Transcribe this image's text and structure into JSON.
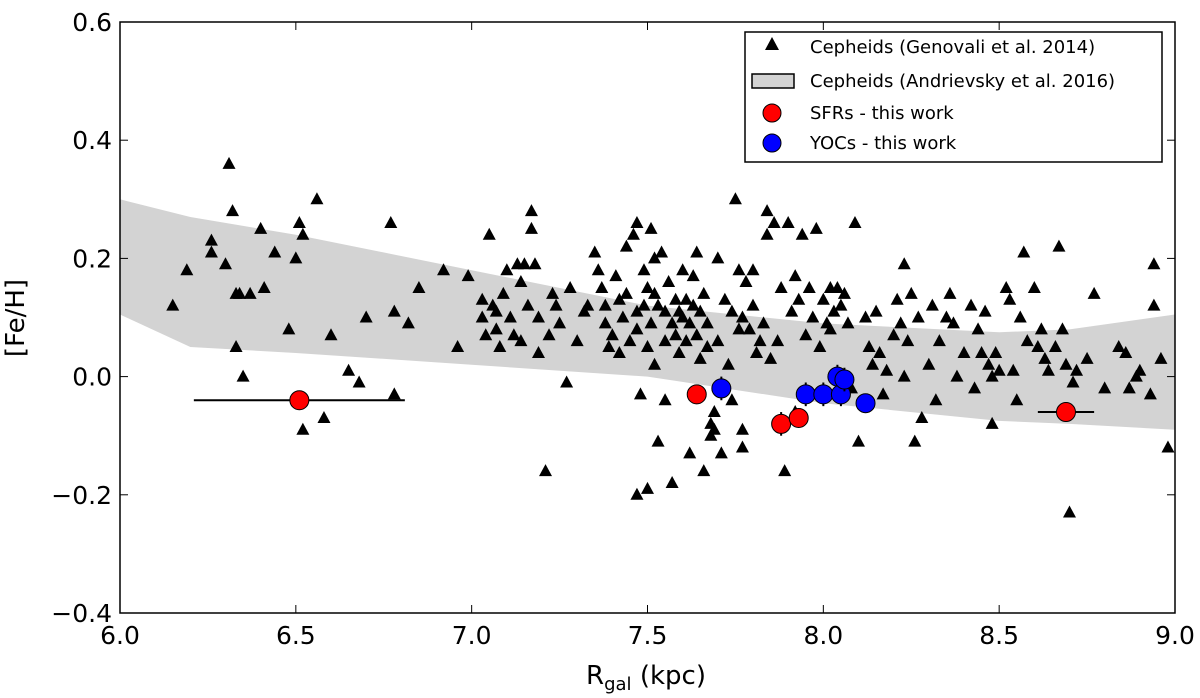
{
  "chart_data": {
    "type": "scatter",
    "title": "",
    "xlabel_main": "R",
    "xlabel_sub": "gal",
    "xlabel_unit": " (kpc)",
    "ylabel": "[Fe/H]",
    "xlim": [
      6.0,
      9.0
    ],
    "ylim": [
      -0.4,
      0.6
    ],
    "xticks": [
      6.0,
      6.5,
      7.0,
      7.5,
      8.0,
      8.5,
      9.0
    ],
    "xtick_labels": [
      "6.0",
      "6.5",
      "7.0",
      "7.5",
      "8.0",
      "8.5",
      "9.0"
    ],
    "yticks": [
      -0.4,
      -0.2,
      0.0,
      0.2,
      0.4,
      0.6
    ],
    "ytick_labels": [
      "−0.4",
      "−0.2",
      "0.0",
      "0.2",
      "0.4",
      "0.6"
    ],
    "legend": [
      {
        "label": "Cepheids (Genovali et al. 2014)",
        "marker": "triangle",
        "color": "#000000"
      },
      {
        "label": "Cepheids (Andrievsky et al. 2016)",
        "marker": "band",
        "color": "#d3d3d3"
      },
      {
        "label": "SFRs - this work",
        "marker": "circle",
        "color": "#ff0000"
      },
      {
        "label": "YOCs - this work",
        "marker": "circle",
        "color": "#0000ff"
      }
    ],
    "band": {
      "x": [
        6.0,
        6.2,
        6.5,
        7.0,
        7.5,
        8.0,
        8.5,
        8.7,
        9.0
      ],
      "upper": [
        0.3,
        0.27,
        0.24,
        0.18,
        0.12,
        0.09,
        0.075,
        0.08,
        0.105
      ],
      "lower": [
        0.105,
        0.05,
        0.04,
        0.02,
        0.0,
        -0.045,
        -0.075,
        -0.08,
        -0.09
      ]
    },
    "cepheids": [
      [
        6.15,
        0.12
      ],
      [
        6.19,
        0.18
      ],
      [
        6.26,
        0.23
      ],
      [
        6.26,
        0.21
      ],
      [
        6.3,
        0.19
      ],
      [
        6.31,
        0.36
      ],
      [
        6.32,
        0.28
      ],
      [
        6.33,
        0.14
      ],
      [
        6.33,
        0.05
      ],
      [
        6.34,
        0.14
      ],
      [
        6.35,
        0.0
      ],
      [
        6.37,
        0.14
      ],
      [
        6.4,
        0.25
      ],
      [
        6.41,
        0.15
      ],
      [
        6.44,
        0.21
      ],
      [
        6.48,
        0.08
      ],
      [
        6.5,
        0.2
      ],
      [
        6.51,
        0.26
      ],
      [
        6.52,
        0.24
      ],
      [
        6.52,
        -0.09
      ],
      [
        6.56,
        0.3
      ],
      [
        6.58,
        -0.07
      ],
      [
        6.6,
        0.07
      ],
      [
        6.65,
        0.01
      ],
      [
        6.68,
        -0.01
      ],
      [
        6.7,
        0.1
      ],
      [
        6.77,
        0.26
      ],
      [
        6.78,
        -0.03
      ],
      [
        6.78,
        0.11
      ],
      [
        6.82,
        0.09
      ],
      [
        6.85,
        0.15
      ],
      [
        6.92,
        0.18
      ],
      [
        6.96,
        0.05
      ],
      [
        6.99,
        0.17
      ],
      [
        7.03,
        0.13
      ],
      [
        7.03,
        0.1
      ],
      [
        7.04,
        0.07
      ],
      [
        7.05,
        0.24
      ],
      [
        7.06,
        0.12
      ],
      [
        7.07,
        0.11
      ],
      [
        7.07,
        0.08
      ],
      [
        7.08,
        0.05
      ],
      [
        7.09,
        0.14
      ],
      [
        7.1,
        0.18
      ],
      [
        7.11,
        0.1
      ],
      [
        7.12,
        0.07
      ],
      [
        7.13,
        0.19
      ],
      [
        7.14,
        0.16
      ],
      [
        7.14,
        0.06
      ],
      [
        7.15,
        0.19
      ],
      [
        7.16,
        0.12
      ],
      [
        7.17,
        0.25
      ],
      [
        7.17,
        0.28
      ],
      [
        7.18,
        0.19
      ],
      [
        7.19,
        0.1
      ],
      [
        7.19,
        0.04
      ],
      [
        7.21,
        -0.16
      ],
      [
        7.22,
        0.07
      ],
      [
        7.23,
        0.14
      ],
      [
        7.24,
        0.12
      ],
      [
        7.25,
        0.09
      ],
      [
        7.27,
        -0.01
      ],
      [
        7.28,
        0.15
      ],
      [
        7.3,
        0.06
      ],
      [
        7.32,
        0.11
      ],
      [
        7.33,
        0.12
      ],
      [
        7.35,
        0.21
      ],
      [
        7.36,
        0.18
      ],
      [
        7.37,
        0.15
      ],
      [
        7.38,
        0.12
      ],
      [
        7.38,
        0.09
      ],
      [
        7.39,
        0.05
      ],
      [
        7.4,
        0.07
      ],
      [
        7.41,
        0.17
      ],
      [
        7.42,
        0.13
      ],
      [
        7.42,
        0.04
      ],
      [
        7.43,
        0.1
      ],
      [
        7.44,
        0.22
      ],
      [
        7.44,
        0.14
      ],
      [
        7.45,
        0.06
      ],
      [
        7.46,
        0.24
      ],
      [
        7.47,
        0.26
      ],
      [
        7.47,
        0.11
      ],
      [
        7.47,
        0.08
      ],
      [
        7.47,
        -0.2
      ],
      [
        7.48,
        -0.03
      ],
      [
        7.49,
        0.18
      ],
      [
        7.49,
        0.12
      ],
      [
        7.5,
        0.15
      ],
      [
        7.5,
        0.05
      ],
      [
        7.5,
        -0.19
      ],
      [
        7.51,
        0.25
      ],
      [
        7.51,
        0.09
      ],
      [
        7.52,
        0.2
      ],
      [
        7.52,
        0.14
      ],
      [
        7.52,
        0.02
      ],
      [
        7.53,
        0.12
      ],
      [
        7.53,
        -0.11
      ],
      [
        7.54,
        0.21
      ],
      [
        7.55,
        0.11
      ],
      [
        7.55,
        0.06
      ],
      [
        7.55,
        -0.04
      ],
      [
        7.56,
        0.16
      ],
      [
        7.57,
        0.09
      ],
      [
        7.57,
        -0.18
      ],
      [
        7.58,
        0.13
      ],
      [
        7.58,
        0.07
      ],
      [
        7.59,
        0.11
      ],
      [
        7.59,
        0.04
      ],
      [
        7.6,
        0.18
      ],
      [
        7.6,
        0.1
      ],
      [
        7.61,
        0.13
      ],
      [
        7.61,
        0.06
      ],
      [
        7.62,
        0.09
      ],
      [
        7.62,
        -0.13
      ],
      [
        7.63,
        0.17
      ],
      [
        7.63,
        0.12
      ],
      [
        7.64,
        0.21
      ],
      [
        7.64,
        0.07
      ],
      [
        7.65,
        0.11
      ],
      [
        7.65,
        0.03
      ],
      [
        7.66,
        0.14
      ],
      [
        7.66,
        -0.16
      ],
      [
        7.67,
        0.09
      ],
      [
        7.67,
        0.05
      ],
      [
        7.68,
        -0.08
      ],
      [
        7.68,
        -0.1
      ],
      [
        7.69,
        -0.06
      ],
      [
        7.69,
        -0.09
      ],
      [
        7.7,
        0.06
      ],
      [
        7.7,
        0.2
      ],
      [
        7.71,
        -0.13
      ],
      [
        7.72,
        0.13
      ],
      [
        7.73,
        0.02
      ],
      [
        7.74,
        0.11
      ],
      [
        7.74,
        -0.04
      ],
      [
        7.75,
        0.3
      ],
      [
        7.76,
        0.18
      ],
      [
        7.76,
        0.08
      ],
      [
        7.77,
        0.1
      ],
      [
        7.77,
        -0.09
      ],
      [
        7.77,
        -0.12
      ],
      [
        7.78,
        0.16
      ],
      [
        7.79,
        0.08
      ],
      [
        7.8,
        0.12
      ],
      [
        7.8,
        0.18
      ],
      [
        7.81,
        0.04
      ],
      [
        7.82,
        0.06
      ],
      [
        7.83,
        0.09
      ],
      [
        7.84,
        0.28
      ],
      [
        7.84,
        0.24
      ],
      [
        7.85,
        0.03
      ],
      [
        7.86,
        0.26
      ],
      [
        7.87,
        0.06
      ],
      [
        7.88,
        0.15
      ],
      [
        7.89,
        -0.16
      ],
      [
        7.9,
        0.26
      ],
      [
        7.91,
        0.11
      ],
      [
        7.92,
        0.17
      ],
      [
        7.92,
        -0.06
      ],
      [
        7.93,
        0.13
      ],
      [
        7.94,
        0.24
      ],
      [
        7.95,
        0.07
      ],
      [
        7.96,
        0.15
      ],
      [
        7.97,
        0.1
      ],
      [
        7.98,
        0.25
      ],
      [
        7.99,
        0.05
      ],
      [
        8.0,
        0.13
      ],
      [
        8.01,
        0.09
      ],
      [
        8.02,
        0.15
      ],
      [
        8.02,
        0.08
      ],
      [
        8.03,
        0.11
      ],
      [
        8.04,
        0.15
      ],
      [
        8.05,
        0.12
      ],
      [
        8.06,
        0.14
      ],
      [
        8.07,
        0.09
      ],
      [
        8.08,
        -0.02
      ],
      [
        8.09,
        0.26
      ],
      [
        8.1,
        -0.11
      ],
      [
        8.12,
        0.1
      ],
      [
        8.13,
        0.05
      ],
      [
        8.14,
        0.02
      ],
      [
        8.15,
        0.11
      ],
      [
        8.16,
        0.04
      ],
      [
        8.17,
        -0.03
      ],
      [
        8.18,
        0.01
      ],
      [
        8.2,
        0.07
      ],
      [
        8.21,
        0.13
      ],
      [
        8.22,
        0.09
      ],
      [
        8.23,
        0.19
      ],
      [
        8.23,
        0.0
      ],
      [
        8.24,
        0.06
      ],
      [
        8.25,
        0.14
      ],
      [
        8.26,
        -0.11
      ],
      [
        8.27,
        0.1
      ],
      [
        8.28,
        -0.07
      ],
      [
        8.3,
        0.02
      ],
      [
        8.31,
        0.12
      ],
      [
        8.32,
        -0.04
      ],
      [
        8.33,
        0.06
      ],
      [
        8.35,
        0.1
      ],
      [
        8.36,
        0.14
      ],
      [
        8.37,
        0.09
      ],
      [
        8.38,
        0.0
      ],
      [
        8.4,
        0.04
      ],
      [
        8.42,
        0.12
      ],
      [
        8.43,
        -0.02
      ],
      [
        8.44,
        0.08
      ],
      [
        8.45,
        0.04
      ],
      [
        8.46,
        0.11
      ],
      [
        8.47,
        0.02
      ],
      [
        8.48,
        0.0
      ],
      [
        8.48,
        -0.08
      ],
      [
        8.49,
        0.04
      ],
      [
        8.5,
        0.01
      ],
      [
        8.52,
        0.15
      ],
      [
        8.53,
        0.13
      ],
      [
        8.54,
        0.01
      ],
      [
        8.55,
        -0.04
      ],
      [
        8.56,
        0.1
      ],
      [
        8.57,
        0.21
      ],
      [
        8.58,
        0.06
      ],
      [
        8.6,
        0.15
      ],
      [
        8.61,
        0.05
      ],
      [
        8.62,
        0.08
      ],
      [
        8.63,
        0.03
      ],
      [
        8.64,
        0.01
      ],
      [
        8.66,
        0.05
      ],
      [
        8.67,
        0.22
      ],
      [
        8.68,
        0.08
      ],
      [
        8.69,
        0.02
      ],
      [
        8.7,
        -0.23
      ],
      [
        8.71,
        -0.01
      ],
      [
        8.72,
        0.01
      ],
      [
        8.75,
        0.03
      ],
      [
        8.77,
        0.14
      ],
      [
        8.8,
        -0.02
      ],
      [
        8.84,
        0.05
      ],
      [
        8.86,
        0.04
      ],
      [
        8.87,
        -0.02
      ],
      [
        8.89,
        0.0
      ],
      [
        8.9,
        0.01
      ],
      [
        8.93,
        -0.03
      ],
      [
        8.94,
        0.12
      ],
      [
        8.94,
        0.19
      ],
      [
        8.96,
        0.03
      ],
      [
        8.98,
        -0.12
      ]
    ],
    "sfrs": [
      {
        "x": 6.51,
        "y": -0.04,
        "xerr": 0.3,
        "yerr": 0.0
      },
      {
        "x": 7.64,
        "y": -0.03,
        "xerr": 0.0,
        "yerr": 0.0
      },
      {
        "x": 7.88,
        "y": -0.08,
        "xerr": 0.0,
        "yerr": 0.02
      },
      {
        "x": 7.93,
        "y": -0.07,
        "xerr": 0.0,
        "yerr": 0.0
      },
      {
        "x": 8.69,
        "y": -0.06,
        "xerr": 0.08,
        "yerr": 0.0
      }
    ],
    "yocs": [
      {
        "x": 7.71,
        "y": -0.02,
        "xerr": 0.0,
        "yerr": 0.02
      },
      {
        "x": 7.95,
        "y": -0.03,
        "xerr": 0.0,
        "yerr": 0.02
      },
      {
        "x": 8.0,
        "y": -0.03,
        "xerr": 0.0,
        "yerr": 0.02
      },
      {
        "x": 8.04,
        "y": 0.0,
        "xerr": 0.0,
        "yerr": 0.02
      },
      {
        "x": 8.05,
        "y": -0.03,
        "xerr": 0.0,
        "yerr": 0.02
      },
      {
        "x": 8.06,
        "y": -0.005,
        "xerr": 0.0,
        "yerr": 0.02
      },
      {
        "x": 8.12,
        "y": -0.045,
        "xerr": 0.0,
        "yerr": 0.0
      }
    ]
  }
}
